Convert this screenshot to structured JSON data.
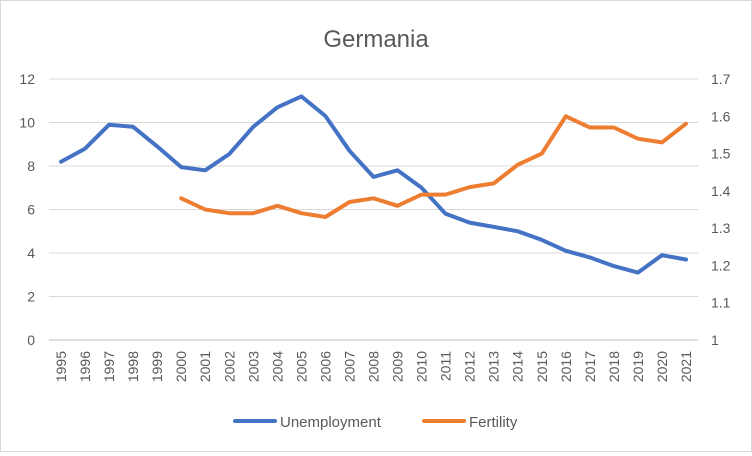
{
  "chart_data": {
    "type": "line",
    "title": "Germania",
    "xlabel": "",
    "ylabel": "",
    "x": [
      "1995",
      "1996",
      "1997",
      "1998",
      "1999",
      "2000",
      "2001",
      "2002",
      "2003",
      "2004",
      "2005",
      "2006",
      "2007",
      "2008",
      "2009",
      "2010",
      "2011",
      "2012",
      "2013",
      "2014",
      "2015",
      "2016",
      "2017",
      "2018",
      "2019",
      "2020",
      "2021"
    ],
    "y_left": {
      "lim": [
        0,
        12
      ],
      "ticks": [
        "0",
        "2",
        "4",
        "6",
        "8",
        "10",
        "12"
      ]
    },
    "y_right": {
      "lim": [
        1,
        1.7
      ],
      "ticks": [
        "1",
        "1.1",
        "1.2",
        "1.3",
        "1.4",
        "1.5",
        "1.6",
        "1.7"
      ]
    },
    "grid": true,
    "legend_position": "bottom",
    "series": [
      {
        "name": "Unemployment",
        "axis": "left",
        "color": "#4472c4",
        "values": [
          8.2,
          8.8,
          9.9,
          9.8,
          8.9,
          7.95,
          7.8,
          8.55,
          9.8,
          10.7,
          11.2,
          10.3,
          8.7,
          7.5,
          7.8,
          7.0,
          5.8,
          5.4,
          5.2,
          5.0,
          4.6,
          4.1,
          3.8,
          3.4,
          3.1,
          3.9,
          3.7
        ]
      },
      {
        "name": "Fertility",
        "axis": "right",
        "color": "#ed7d31",
        "values": [
          null,
          null,
          null,
          null,
          null,
          1.38,
          1.35,
          1.34,
          1.34,
          1.36,
          1.34,
          1.33,
          1.37,
          1.38,
          1.36,
          1.39,
          1.39,
          1.41,
          1.42,
          1.47,
          1.5,
          1.6,
          1.57,
          1.57,
          1.54,
          1.53,
          1.58
        ]
      }
    ]
  }
}
